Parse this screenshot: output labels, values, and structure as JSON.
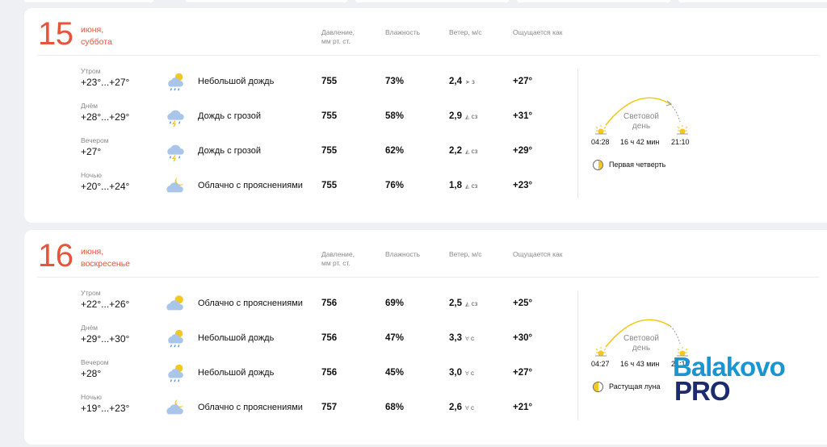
{
  "headers": {
    "pressure": [
      "Давление,",
      "мм рт. ст."
    ],
    "humidity": "Влажность",
    "wind": "Ветер, м/с",
    "feels": "Ощущается как"
  },
  "days": [
    {
      "number": "15",
      "month": "июня,",
      "weekday": "суббота",
      "rows": [
        {
          "period": "Утром",
          "temp": "+23°...+27°",
          "icon": "cloud-sun-rain-icon",
          "condition": "Небольшой дождь",
          "pressure": "755",
          "humidity": "73%",
          "wind": "2,4",
          "wind_dir": "з",
          "wind_arrow": "➤",
          "feels": "+27°"
        },
        {
          "period": "Днём",
          "temp": "+28°...+29°",
          "icon": "cloud-thunder-rain-icon",
          "condition": "Дождь с грозой",
          "pressure": "755",
          "humidity": "58%",
          "wind": "2,9",
          "wind_dir": "сз",
          "wind_arrow": "◭",
          "feels": "+31°"
        },
        {
          "period": "Вечером",
          "temp": "+27°",
          "icon": "cloud-thunder-rain-icon",
          "condition": "Дождь с грозой",
          "pressure": "755",
          "humidity": "62%",
          "wind": "2,2",
          "wind_dir": "сз",
          "wind_arrow": "◭",
          "feels": "+29°"
        },
        {
          "period": "Ночью",
          "temp": "+20°...+24°",
          "icon": "cloud-moon-icon",
          "condition": "Облачно с прояснениями",
          "pressure": "755",
          "humidity": "76%",
          "wind": "1,8",
          "wind_dir": "сз",
          "wind_arrow": "◭",
          "feels": "+23°"
        }
      ],
      "sun": {
        "label": [
          "Световой",
          "день"
        ],
        "sunrise": "04:28",
        "day_length": "16 ч 42 мин",
        "sunset": "21:10"
      },
      "moon": {
        "phase": "Первая четверть",
        "lit_side": "right"
      }
    },
    {
      "number": "16",
      "month": "июня,",
      "weekday": "воскресенье",
      "rows": [
        {
          "period": "Утром",
          "temp": "+22°...+26°",
          "icon": "cloud-sun-icon",
          "condition": "Облачно с прояснениями",
          "pressure": "756",
          "humidity": "69%",
          "wind": "2,5",
          "wind_dir": "сз",
          "wind_arrow": "◭",
          "feels": "+25°"
        },
        {
          "period": "Днём",
          "temp": "+29°...+30°",
          "icon": "cloud-sun-rain-icon",
          "condition": "Небольшой дождь",
          "pressure": "756",
          "humidity": "47%",
          "wind": "3,3",
          "wind_dir": "с",
          "wind_arrow": "∀",
          "feels": "+30°"
        },
        {
          "period": "Вечером",
          "temp": "+28°",
          "icon": "cloud-sun-rain-icon",
          "condition": "Небольшой дождь",
          "pressure": "756",
          "humidity": "45%",
          "wind": "3,0",
          "wind_dir": "с",
          "wind_arrow": "∀",
          "feels": "+27°"
        },
        {
          "period": "Ночью",
          "temp": "+19°...+23°",
          "icon": "cloud-moon-icon",
          "condition": "Облачно с прояснениями",
          "pressure": "757",
          "humidity": "68%",
          "wind": "2,6",
          "wind_dir": "с",
          "wind_arrow": "∀",
          "feels": "+21°"
        }
      ],
      "sun": {
        "label": [
          "Световой",
          "день"
        ],
        "sunrise": "04:27",
        "day_length": "16 ч 43 мин",
        "sunset": "21:10"
      },
      "moon": {
        "phase": "Растущая луна",
        "lit_side": "left"
      }
    }
  ],
  "watermark": {
    "line1": "Balakovo",
    "line2": "PRO"
  },
  "colors": {
    "accent": "#e8533c",
    "sun": "#f2c81a",
    "cloud": "#a9c6ea",
    "rain": "#4a90d9",
    "logo_blue": "#1a95d3",
    "logo_dark": "#1c2b6b"
  }
}
